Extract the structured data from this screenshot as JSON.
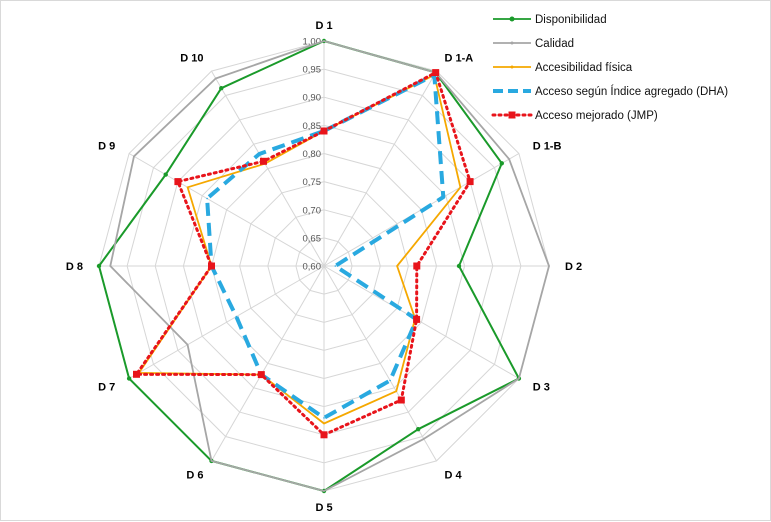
{
  "chart_data": {
    "type": "radar",
    "categories": [
      "D 1",
      "D 1-A",
      "D 1-B",
      "D 2",
      "D 3",
      "D 4",
      "D 5",
      "D 6",
      "D 7",
      "D 8",
      "D 9",
      "D 10"
    ],
    "rlim": [
      0.6,
      1.0
    ],
    "ticks": [
      "0,60",
      "0,65",
      "0,70",
      "0,75",
      "0,80",
      "0,85",
      "0,90",
      "0,95",
      "1,00"
    ],
    "grid": true,
    "legend_position": "top-right",
    "series": [
      {
        "name": "Disponibilidad",
        "color": "#1a9a2a",
        "style": "solid-marker",
        "values": [
          1.0,
          0.997,
          0.965,
          0.84,
          1.0,
          0.935,
          1.0,
          1.0,
          1.0,
          1.0,
          0.925,
          0.965
        ]
      },
      {
        "name": "Calidad",
        "color": "#a6a6a6",
        "style": "solid",
        "values": [
          1.0,
          0.997,
          0.98,
          1.0,
          1.0,
          0.955,
          1.0,
          1.0,
          0.88,
          0.98,
          0.99,
          0.985
        ]
      },
      {
        "name": "Accesibilidad física",
        "color": "#f5a800",
        "style": "solid",
        "values": [
          0.84,
          0.992,
          0.88,
          0.73,
          0.787,
          0.857,
          0.88,
          0.823,
          0.98,
          0.8,
          0.88,
          0.81
        ]
      },
      {
        "name": "Acceso según Índice agregado (DHA)",
        "color": "#29a9e0",
        "style": "dashed",
        "values": [
          0.84,
          0.992,
          0.845,
          0.62,
          0.79,
          0.835,
          0.87,
          0.823,
          0.78,
          0.8,
          0.84,
          0.83
        ]
      },
      {
        "name": "Acceso mejorado (JMP)",
        "color": "#e8141b",
        "style": "dotted",
        "values": [
          0.84,
          0.997,
          0.9,
          0.765,
          0.79,
          0.875,
          0.9,
          0.823,
          0.985,
          0.8,
          0.9,
          0.815
        ]
      }
    ]
  }
}
